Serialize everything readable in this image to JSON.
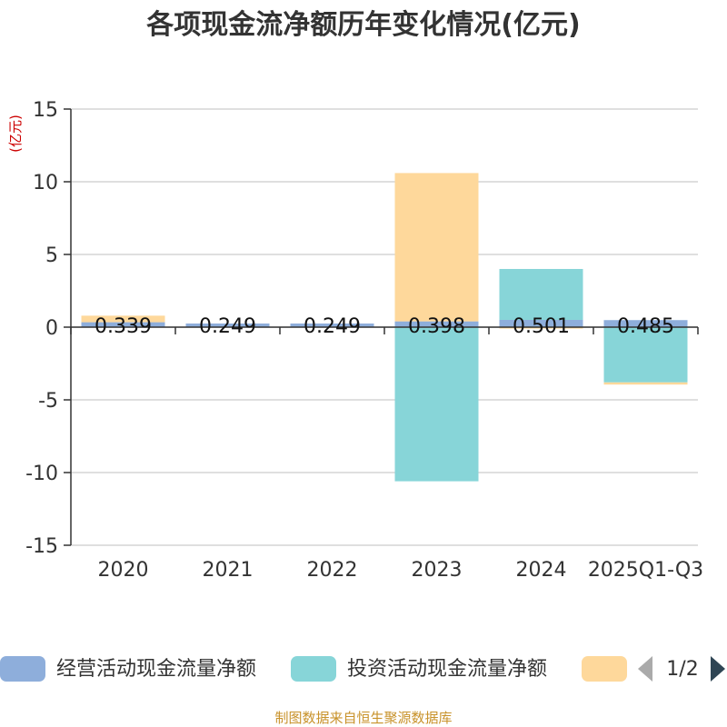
{
  "chart_data": {
    "type": "bar",
    "stacked": true,
    "title": "各项现金流净额历年变化情况(亿元)",
    "ylabel": "(亿元)",
    "xlabel": "",
    "ylim": [
      -15,
      15
    ],
    "yticks": [
      15,
      10,
      5,
      0,
      -5,
      -10,
      -15
    ],
    "ytick_labels": [
      "15",
      "10",
      "5",
      "0",
      "-5",
      "-10",
      "-15"
    ],
    "categories": [
      "2020",
      "2021",
      "2022",
      "2023",
      "2024",
      "2025Q1-Q3"
    ],
    "series": [
      {
        "name": "经营活动现金流量净额",
        "color": "#8eaedb",
        "values": [
          0.339,
          0.249,
          0.249,
          0.398,
          0.501,
          0.485
        ]
      },
      {
        "name": "投资活动现金流量净额",
        "color": "#87d5d8",
        "values": [
          0.0,
          0.0,
          0.0,
          -10.6,
          3.5,
          -3.8
        ]
      },
      {
        "name": "",
        "color": "#fed89b",
        "values": [
          0.45,
          0.0,
          0.0,
          10.2,
          -0.1,
          -0.15
        ]
      }
    ],
    "data_labels": [
      "0.339",
      "0.249",
      "0.249",
      "0.398",
      "0.501",
      "0.485"
    ],
    "grid": true,
    "legend_position": "bottom"
  },
  "legend": {
    "page": "1/2"
  },
  "source": "制图数据来自恒生聚源数据库"
}
